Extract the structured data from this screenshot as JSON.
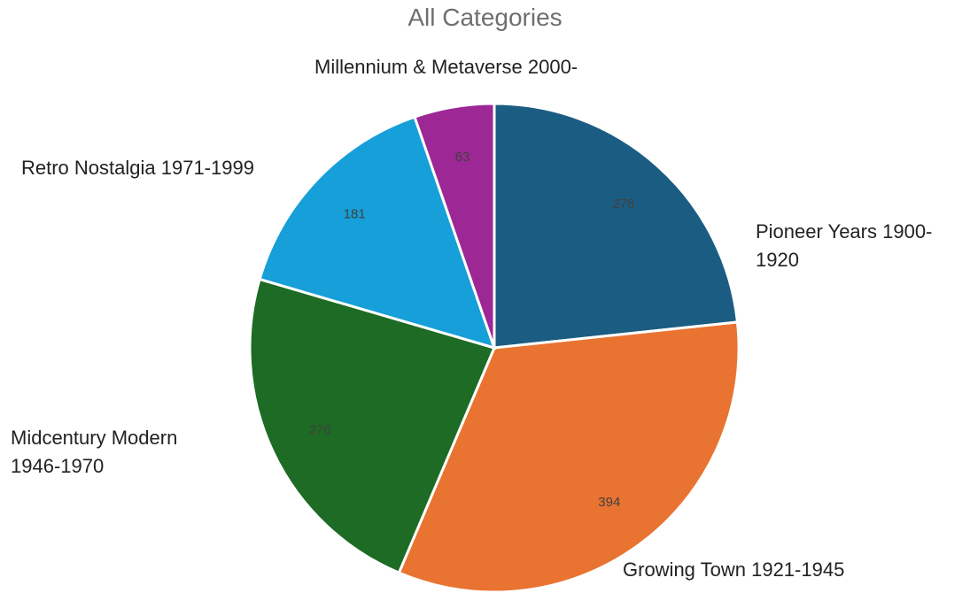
{
  "chart_data": {
    "type": "pie",
    "title": "All Categories",
    "slices": [
      {
        "label": "Pioneer Years 1900-1920",
        "value": 278,
        "value_label": "278",
        "color": "#1b5d82"
      },
      {
        "label": "Growing Town 1921-1945",
        "value": 394,
        "value_label": "394",
        "color": "#e97330"
      },
      {
        "label": "Midcentury Modern 1946-1970",
        "value": 276,
        "value_label": "276",
        "color": "#1d6b24"
      },
      {
        "label": "Retro Nostalgia 1971-1999",
        "value": 181,
        "value_label": "181",
        "color": "#169fd8"
      },
      {
        "label": "Millennium & Metaverse 2000-",
        "value": 63,
        "value_label": "63",
        "color": "#9c2795"
      }
    ],
    "start_angle_deg": 0,
    "direction": "clockwise",
    "legend": "none"
  }
}
